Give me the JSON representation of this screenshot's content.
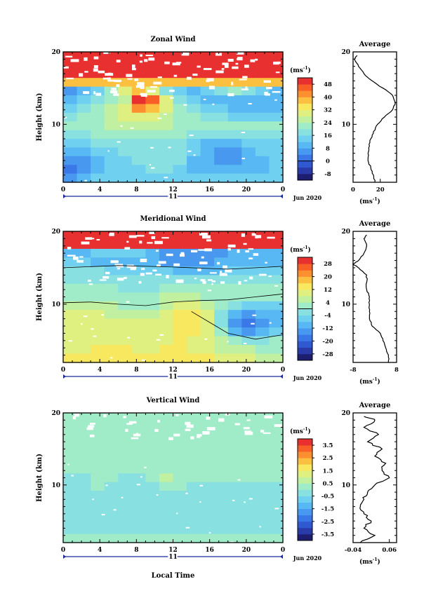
{
  "chart_data": [
    {
      "type": "heatmap",
      "title": "Zonal Wind",
      "ylabel": "Height (km)",
      "unit_label": "(ms",
      "unit_exp": "-1",
      "day_label": "11",
      "date_label": "Jun 2020",
      "xlim": [
        0,
        24
      ],
      "ylim": [
        2,
        20
      ],
      "x_ticks": [
        "0",
        "4",
        "8",
        "12",
        "16",
        "20",
        "0"
      ],
      "y_ticks": [
        "20",
        "10"
      ],
      "colorbar_ticks": [
        "48",
        "40",
        "32",
        "24",
        "16",
        "8",
        "0",
        "-8"
      ],
      "colorbar_range": [
        -12,
        52
      ],
      "colors": [
        "#1e1e70",
        "#2a3aa8",
        "#3058d0",
        "#3a78e8",
        "#4898f0",
        "#58b8f4",
        "#70d0f0",
        "#88e0e0",
        "#a0ecc8",
        "#c0f0a0",
        "#e0f080",
        "#f8e860",
        "#fcc040",
        "#fc9030",
        "#f86028",
        "#e83030"
      ],
      "grid": [
        [
          16,
          16,
          16,
          16,
          16,
          16,
          16,
          16,
          16,
          16,
          16,
          16,
          16,
          16,
          16,
          16
        ],
        [
          15,
          15,
          15,
          15,
          15,
          15,
          15,
          15,
          15,
          15,
          15,
          15,
          15,
          15,
          15,
          15
        ],
        [
          15,
          15,
          15,
          15,
          15,
          15,
          15,
          15,
          15,
          15,
          15,
          15,
          15,
          15,
          15,
          15
        ],
        [
          12,
          12,
          12,
          12,
          12,
          12,
          12,
          12,
          12,
          12,
          12,
          12,
          12,
          12,
          12,
          12
        ],
        [
          4,
          5,
          6,
          8,
          10,
          12,
          10,
          7,
          6,
          5,
          6,
          7,
          8,
          7,
          6,
          5
        ],
        [
          5,
          6,
          7,
          8,
          9,
          16,
          14,
          10,
          7,
          6,
          5,
          5,
          5,
          5,
          5,
          5
        ],
        [
          6,
          7,
          8,
          9,
          10,
          13,
          12,
          10,
          8,
          7,
          6,
          6,
          5,
          5,
          5,
          5
        ],
        [
          7,
          8,
          8,
          9,
          10,
          10,
          10,
          9,
          8,
          8,
          7,
          7,
          6,
          6,
          6,
          6
        ],
        [
          8,
          8,
          8,
          9,
          9,
          9,
          9,
          9,
          8,
          8,
          8,
          8,
          8,
          8,
          8,
          8
        ],
        [
          7,
          7,
          8,
          8,
          8,
          8,
          8,
          8,
          8,
          7,
          7,
          7,
          7,
          7,
          7,
          7
        ],
        [
          6,
          6,
          7,
          7,
          7,
          7,
          7,
          7,
          7,
          6,
          5,
          5,
          5,
          6,
          6,
          6
        ],
        [
          5,
          5,
          6,
          6,
          7,
          7,
          7,
          7,
          7,
          6,
          5,
          4,
          4,
          5,
          6,
          6
        ],
        [
          4,
          4,
          5,
          6,
          6,
          7,
          7,
          7,
          7,
          5,
          5,
          4,
          4,
          5,
          5,
          6
        ],
        [
          3,
          4,
          5,
          6,
          6,
          6,
          7,
          7,
          6,
          5,
          5,
          5,
          5,
          5,
          5,
          6
        ],
        [
          4,
          5,
          6,
          6,
          6,
          6,
          6,
          6,
          6,
          6,
          6,
          6,
          6,
          6,
          6,
          6
        ]
      ],
      "profile": {
        "title": "Average",
        "xlim": [
          0,
          32
        ],
        "x_ticks": [
          {
            "value": 0,
            "label": "0"
          },
          {
            "value": 20,
            "label": "20"
          }
        ],
        "y_ticks": [
          "20",
          "10"
        ],
        "unit_label": "(ms",
        "unit_exp": "-1",
        "heights": [
          2,
          3,
          4,
          5,
          6,
          7,
          8,
          9,
          10,
          11,
          12,
          13,
          14,
          15,
          16,
          17,
          18,
          19,
          19.5
        ],
        "values": [
          16,
          15,
          13,
          11,
          11,
          12,
          13,
          15,
          18,
          23,
          29,
          31,
          29,
          22,
          14,
          8,
          4,
          1,
          3
        ]
      }
    },
    {
      "type": "heatmap",
      "title": "Meridional Wind",
      "ylabel": "Height (km)",
      "unit_label": "(ms",
      "unit_exp": "-1",
      "day_label": "11",
      "date_label": "Jun 2020",
      "xlim": [
        0,
        24
      ],
      "ylim": [
        2,
        20
      ],
      "x_ticks": [
        "0",
        "4",
        "8",
        "12",
        "16",
        "20",
        "0"
      ],
      "y_ticks": [
        "20",
        "10"
      ],
      "colorbar_ticks": [
        "28",
        "20",
        "12",
        "4",
        "-4",
        "-12",
        "-20",
        "-28"
      ],
      "colorbar_range": [
        -32,
        32
      ],
      "colors": [
        "#1e1e70",
        "#2a3aa8",
        "#3058d0",
        "#3a78e8",
        "#4898f0",
        "#58b8f4",
        "#70d0f0",
        "#88e0e0",
        "#a0ecc8",
        "#c0f0a0",
        "#e0f080",
        "#f8e860",
        "#fcc040",
        "#fc9030",
        "#f86028",
        "#e83030"
      ],
      "grid": [
        [
          16,
          16,
          16,
          16,
          16,
          16,
          16,
          16,
          16,
          16,
          16,
          16,
          16,
          16,
          16,
          16
        ],
        [
          16,
          16,
          16,
          16,
          16,
          16,
          16,
          16,
          16,
          16,
          16,
          16,
          16,
          16,
          16,
          16
        ],
        [
          5,
          5,
          6,
          6,
          6,
          6,
          5,
          4,
          4,
          4,
          4,
          4,
          5,
          5,
          5,
          5
        ],
        [
          6,
          6,
          5,
          5,
          5,
          5,
          5,
          4,
          4,
          4,
          4,
          5,
          5,
          5,
          5,
          5
        ],
        [
          7,
          7,
          7,
          6,
          6,
          6,
          6,
          6,
          5,
          5,
          5,
          5,
          6,
          6,
          6,
          6
        ],
        [
          7,
          7,
          7,
          7,
          7,
          7,
          7,
          7,
          7,
          7,
          7,
          7,
          7,
          7,
          7,
          7
        ],
        [
          8,
          8,
          8,
          8,
          7,
          7,
          7,
          8,
          8,
          8,
          8,
          8,
          8,
          8,
          8,
          8
        ],
        [
          8,
          8,
          8,
          8,
          8,
          8,
          8,
          9,
          9,
          9,
          8,
          8,
          8,
          8,
          8,
          8
        ],
        [
          9,
          9,
          9,
          9,
          8,
          8,
          8,
          9,
          10,
          10,
          9,
          8,
          7,
          6,
          6,
          6
        ],
        [
          10,
          10,
          10,
          9,
          9,
          9,
          9,
          10,
          11,
          11,
          10,
          7,
          5,
          4,
          5,
          5
        ],
        [
          10,
          10,
          10,
          10,
          10,
          10,
          10,
          10,
          11,
          11,
          10,
          7,
          4,
          3,
          4,
          5
        ],
        [
          10,
          10,
          10,
          10,
          10,
          10,
          10,
          10,
          11,
          11,
          10,
          8,
          5,
          4,
          5,
          6
        ],
        [
          10,
          10,
          10,
          10,
          10,
          10,
          10,
          10,
          11,
          10,
          10,
          9,
          8,
          7,
          7,
          8
        ],
        [
          10,
          10,
          11,
          11,
          11,
          10,
          10,
          11,
          11,
          10,
          10,
          9,
          9,
          9,
          8,
          8
        ],
        [
          11,
          11,
          11,
          11,
          11,
          11,
          11,
          11,
          11,
          11,
          11,
          10,
          10,
          10,
          9,
          9
        ]
      ],
      "profile": {
        "title": "Average",
        "xlim": [
          -8,
          8
        ],
        "x_ticks": [
          {
            "value": -8,
            "label": "-8"
          },
          {
            "value": 8,
            "label": "8"
          }
        ],
        "y_ticks": [
          "20",
          "10"
        ],
        "unit_label": "(ms",
        "unit_exp": "-1",
        "heights": [
          2,
          3,
          4,
          5,
          6,
          7,
          8,
          9,
          10,
          11,
          12,
          13,
          14,
          15,
          15.5,
          16,
          17,
          18,
          19,
          19.5
        ],
        "values": [
          5,
          5,
          4,
          3,
          2,
          -1,
          -2,
          -2,
          -2,
          -2,
          -3,
          -3,
          -3,
          -6,
          -8,
          -6,
          -4,
          -3,
          -4,
          -3
        ]
      }
    },
    {
      "type": "heatmap",
      "title": "Vertical Wind",
      "ylabel": "Height (km)",
      "xlabel": "Local Time",
      "unit_label": "(ms",
      "unit_exp": "-1",
      "day_label": "11",
      "date_label": "Jun 2020",
      "xlim": [
        0,
        24
      ],
      "ylim": [
        2,
        20
      ],
      "x_ticks": [
        "0",
        "4",
        "8",
        "12",
        "16",
        "20",
        "0"
      ],
      "y_ticks": [
        "20",
        "10"
      ],
      "colorbar_ticks": [
        "3.5",
        "2.5",
        "1.5",
        "0.5",
        "-0.5",
        "-1.5",
        "-2.5",
        "-3.5"
      ],
      "colorbar_range": [
        -4,
        4
      ],
      "colors": [
        "#1e1e70",
        "#2a3aa8",
        "#3058d0",
        "#3a78e8",
        "#4898f0",
        "#58b8f4",
        "#70d0f0",
        "#88e0e0",
        "#a0ecc8",
        "#c0f0a0",
        "#e0f080",
        "#f8e860",
        "#fcc040",
        "#fc9030",
        "#f86028",
        "#e83030"
      ],
      "grid": [
        [
          8,
          8,
          8,
          8,
          8,
          8,
          8,
          8,
          8,
          8,
          8,
          8,
          8,
          8,
          8,
          8
        ],
        [
          8,
          8,
          8,
          8,
          8,
          8,
          8,
          8,
          8,
          8,
          8,
          8,
          8,
          8,
          8,
          8
        ],
        [
          8,
          8,
          8,
          8,
          8,
          8,
          8,
          8,
          8,
          8,
          8,
          8,
          8,
          8,
          8,
          8
        ],
        [
          8,
          8,
          8,
          8,
          8,
          8,
          8,
          8,
          8,
          8,
          8,
          8,
          8,
          8,
          8,
          8
        ],
        [
          8,
          8,
          8,
          8,
          8,
          8,
          8,
          8,
          8,
          8,
          8,
          8,
          8,
          8,
          8,
          8
        ],
        [
          8,
          8,
          8,
          8,
          8,
          8,
          8,
          8,
          8,
          8,
          8,
          8,
          8,
          8,
          8,
          8
        ],
        [
          8,
          8,
          8,
          8,
          8,
          8,
          8,
          8,
          8,
          8,
          8,
          8,
          8,
          8,
          8,
          8
        ],
        [
          7,
          7,
          8,
          8,
          7,
          7,
          8,
          9,
          8,
          8,
          8,
          8,
          8,
          8,
          8,
          8
        ],
        [
          7,
          7,
          8,
          7,
          7,
          7,
          7,
          8,
          8,
          7,
          7,
          7,
          7,
          7,
          7,
          7
        ],
        [
          7,
          7,
          7,
          7,
          7,
          7,
          7,
          7,
          7,
          7,
          7,
          7,
          7,
          7,
          7,
          7
        ],
        [
          7,
          7,
          7,
          7,
          7,
          7,
          7,
          7,
          7,
          7,
          7,
          7,
          7,
          7,
          7,
          7
        ],
        [
          7,
          7,
          7,
          7,
          7,
          7,
          7,
          7,
          7,
          7,
          7,
          7,
          7,
          7,
          7,
          7
        ],
        [
          7,
          7,
          7,
          7,
          7,
          7,
          7,
          7,
          7,
          7,
          7,
          7,
          7,
          7,
          7,
          7
        ],
        [
          7,
          7,
          7,
          7,
          7,
          7,
          7,
          7,
          7,
          7,
          7,
          7,
          7,
          7,
          7,
          7
        ],
        [
          8,
          8,
          8,
          8,
          8,
          8,
          8,
          8,
          8,
          8,
          8,
          8,
          8,
          8,
          8,
          8
        ]
      ],
      "profile": {
        "title": "Average",
        "xlim": [
          -0.04,
          0.08
        ],
        "x_ticks": [
          {
            "value": -0.04,
            "label": "-0.04"
          },
          {
            "value": 0.06,
            "label": "0.06"
          }
        ],
        "y_ticks": [
          "20",
          "10"
        ],
        "unit_label": "(ms",
        "unit_exp": "-1",
        "heights": [
          2,
          3,
          4,
          5,
          6,
          7,
          8,
          9,
          10,
          11,
          12,
          13,
          14,
          15,
          16,
          17,
          18,
          19,
          19.5
        ],
        "values": [
          -0.02,
          0.02,
          -0.01,
          0.01,
          -0.01,
          -0.02,
          -0.01,
          0.0,
          0.02,
          0.06,
          0.04,
          0.05,
          0.02,
          0.04,
          0.0,
          0.03,
          -0.01,
          0.02,
          -0.01
        ]
      }
    }
  ]
}
